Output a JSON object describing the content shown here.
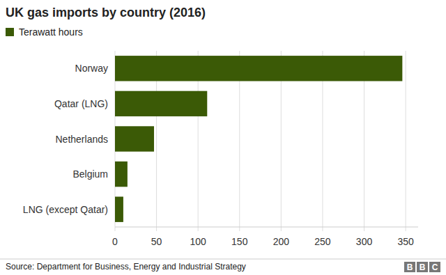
{
  "chart_data": {
    "type": "bar",
    "orientation": "horizontal",
    "title": "UK gas imports by country (2016)",
    "categories": [
      "Norway",
      "Qatar (LNG)",
      "Netherlands",
      "Belgium",
      "LNG (except Qatar)"
    ],
    "series": [
      {
        "name": "Terawatt hours",
        "color": "#3b5a06",
        "values": [
          346,
          111,
          47,
          15,
          10
        ]
      }
    ],
    "xlim": [
      0,
      365
    ],
    "xticks": [
      0,
      50,
      100,
      150,
      200,
      250,
      300,
      350
    ],
    "grid": true,
    "legend": "top-left",
    "source": "Source: Department for Business, Energy and Industrial Strategy",
    "logo": "BBC"
  }
}
